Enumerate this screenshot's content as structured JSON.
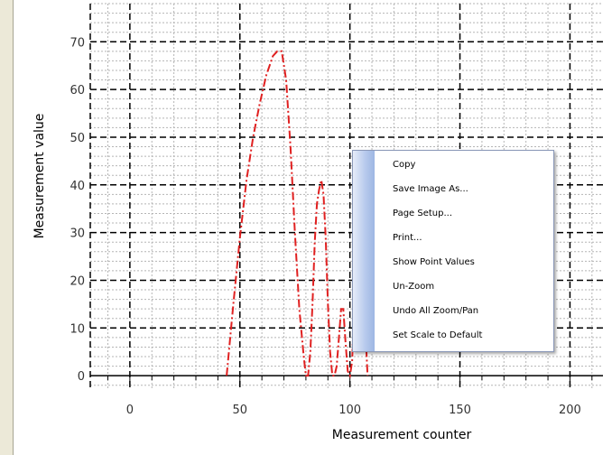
{
  "chart_data": {
    "type": "line",
    "xlabel": "Measurement counter",
    "ylabel": "Measurement value",
    "xlim": [
      -18,
      215
    ],
    "ylim": [
      -3,
      78
    ],
    "x_ticks": [
      0,
      50,
      100,
      150,
      200
    ],
    "y_ticks": [
      0,
      10,
      20,
      30,
      40,
      50,
      60,
      70
    ],
    "grid": true,
    "line_color": "#e02020",
    "series": [
      {
        "x": [
          44,
          47,
          50,
          53,
          56,
          59,
          62,
          65,
          67,
          69,
          71,
          73,
          75,
          77,
          79,
          80,
          81,
          82,
          83,
          84,
          85,
          86,
          87,
          88,
          89,
          90,
          91,
          92,
          93,
          94,
          95,
          96,
          97,
          98,
          99,
          100,
          101,
          102,
          103,
          104,
          105,
          106,
          107,
          108
        ],
        "y": [
          0,
          15,
          29,
          41,
          50,
          57,
          63,
          67,
          68,
          68,
          62,
          48,
          30,
          14,
          4,
          0,
          0,
          5,
          15,
          28,
          36,
          39,
          41,
          38,
          29,
          15,
          5,
          0,
          0,
          2,
          8,
          14,
          14,
          7,
          1,
          0,
          3,
          15,
          30,
          42,
          45,
          30,
          10,
          0
        ]
      }
    ]
  },
  "context_menu": {
    "items": [
      "Copy",
      "Save Image As...",
      "Page Setup...",
      "Print...",
      "Show Point Values",
      "Un-Zoom",
      "Undo All Zoom/Pan",
      "Set Scale to Default"
    ]
  }
}
